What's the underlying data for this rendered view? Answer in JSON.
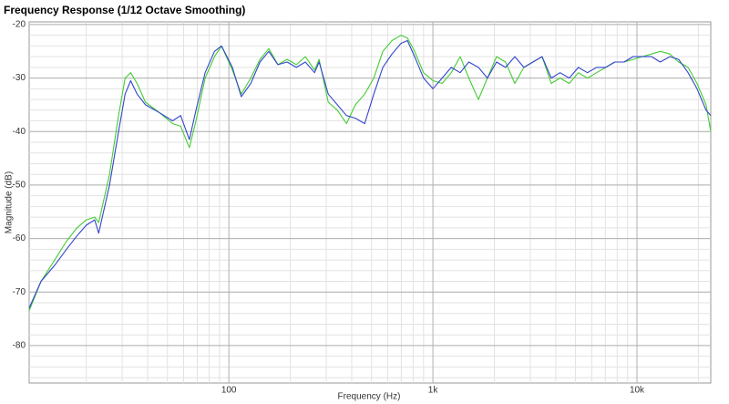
{
  "chart_data": {
    "type": "line",
    "title": "Frequency Response (1/12 Octave Smoothing)",
    "x_label": "Frequency (Hz)",
    "y_label": "Magnitude (dB)",
    "x": [
      10.5,
      12,
      14,
      16,
      18,
      20,
      22,
      23,
      26,
      28.8,
      31,
      33,
      35.5,
      39,
      45.8,
      53,
      58,
      64,
      69,
      76.5,
      85,
      92,
      104,
      115,
      128,
      142,
      157,
      174,
      193,
      214,
      237,
      263,
      277,
      307,
      340,
      377,
      417,
      463,
      513,
      568,
      630,
      698,
      750,
      813,
      900,
      1000,
      1110,
      1230,
      1360,
      1500,
      1670,
      1850,
      2050,
      2270,
      2520,
      2790,
      3090,
      3430,
      3800,
      4200,
      4660,
      5160,
      5720,
      6340,
      7030,
      7790,
      8630,
      9570,
      10600,
      11800,
      13000,
      14500,
      16000,
      17800,
      19700,
      21800,
      23000
    ],
    "series": [
      {
        "name": "Green",
        "color": "#44cc33",
        "values": [
          -73.5,
          -68,
          -64,
          -60.5,
          -58,
          -56.5,
          -56,
          -57,
          -48,
          -37,
          -30,
          -29,
          -31,
          -34.5,
          -36.5,
          -38.5,
          -39,
          -43,
          -38,
          -30,
          -26,
          -24,
          -28.5,
          -33,
          -30,
          -26.5,
          -24.5,
          -27.5,
          -26.5,
          -27.5,
          -26,
          -28.5,
          -26.5,
          -34.5,
          -36,
          -38.5,
          -35,
          -33,
          -30,
          -25,
          -23,
          -22,
          -22.5,
          -25,
          -29,
          -30.5,
          -31,
          -29,
          -26,
          -30,
          -34,
          -30,
          -26,
          -27,
          -31,
          -28,
          -27,
          -26,
          -31,
          -30,
          -31,
          -29,
          -30,
          -29,
          -28,
          -27,
          -27,
          -26.5,
          -26,
          -25.5,
          -25,
          -25.5,
          -27,
          -28,
          -31,
          -35,
          -40
        ]
      },
      {
        "name": "Blue",
        "color": "#3344cc",
        "values": [
          -73,
          -68,
          -65,
          -62,
          -59.5,
          -57.5,
          -56.5,
          -59,
          -50,
          -40,
          -33,
          -30.5,
          -33,
          -35,
          -36.5,
          -38,
          -37,
          -41.5,
          -36,
          -29,
          -25,
          -24,
          -28,
          -33.5,
          -31,
          -27,
          -25,
          -27.5,
          -27,
          -28,
          -27,
          -29,
          -27,
          -33,
          -35,
          -37,
          -37.5,
          -38.5,
          -33,
          -28,
          -25.5,
          -23.5,
          -23,
          -26,
          -30,
          -32,
          -30,
          -28,
          -29,
          -27,
          -28,
          -30,
          -27,
          -28,
          -26,
          -28,
          -27,
          -26,
          -30,
          -29,
          -30,
          -28,
          -29,
          -28,
          -28,
          -27,
          -27,
          -26,
          -26,
          -26,
          -27,
          -26,
          -26.5,
          -29,
          -32,
          -36,
          -37
        ]
      }
    ],
    "xlim": [
      10.5,
      23000
    ],
    "ylim": [
      -87,
      -19.5
    ],
    "xlog": true,
    "xticks": [
      {
        "value": 100,
        "label": "100"
      },
      {
        "value": 1000,
        "label": "1k"
      },
      {
        "value": 10000,
        "label": "10k"
      }
    ],
    "yticks": [
      -20,
      -30,
      -40,
      -50,
      -60,
      -70,
      -80
    ],
    "grid": true
  }
}
